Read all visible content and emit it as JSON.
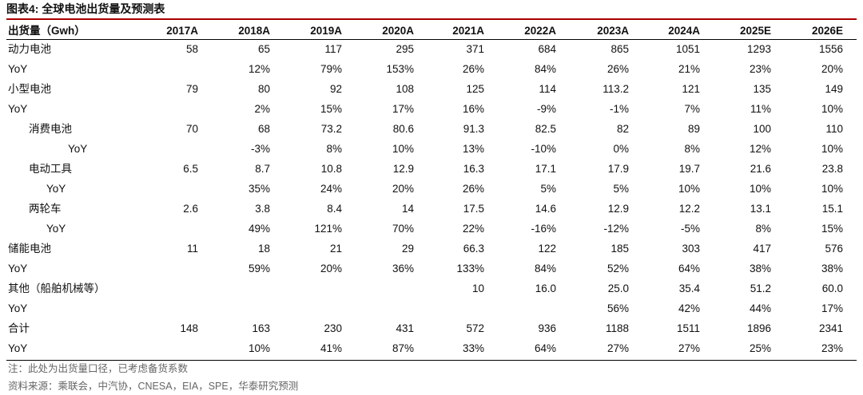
{
  "title": "图表4:  全球电池出货量及预测表",
  "table": {
    "header": [
      "出货量（Gwh）",
      "2017A",
      "2018A",
      "2019A",
      "2020A",
      "2021A",
      "2022A",
      "2023A",
      "2024A",
      "2025E",
      "2026E"
    ],
    "rows": [
      [
        "动力电池",
        "58",
        "65",
        "117",
        "295",
        "371",
        "684",
        "865",
        "1051",
        "1293",
        "1556"
      ],
      [
        "YoY",
        null,
        "12%",
        "79%",
        "153%",
        "26%",
        "84%",
        "26%",
        "21%",
        "23%",
        "20%"
      ],
      [
        "小型电池",
        "79",
        "80",
        "92",
        "108",
        "125",
        "114",
        "113.2",
        "121",
        "135",
        "149"
      ],
      [
        "YoY",
        null,
        "2%",
        "15%",
        "17%",
        "16%",
        "-9%",
        "-1%",
        "7%",
        "11%",
        "10%"
      ],
      [
        "消费电池",
        "70",
        "68",
        "73.2",
        "80.6",
        "91.3",
        "82.5",
        "82",
        "89",
        "100",
        "110"
      ],
      [
        "YoY",
        null,
        "-3%",
        "8%",
        "10%",
        "13%",
        "-10%",
        "0%",
        "8%",
        "12%",
        "10%"
      ],
      [
        "电动工具",
        "6.5",
        "8.7",
        "10.8",
        "12.9",
        "16.3",
        "17.1",
        "17.9",
        "19.7",
        "21.6",
        "23.8"
      ],
      [
        "YoY",
        null,
        "35%",
        "24%",
        "20%",
        "26%",
        "5%",
        "5%",
        "10%",
        "10%",
        "10%"
      ],
      [
        "两轮车",
        "2.6",
        "3.8",
        "8.4",
        "14",
        "17.5",
        "14.6",
        "12.9",
        "12.2",
        "13.1",
        "15.1"
      ],
      [
        "YoY",
        null,
        "49%",
        "121%",
        "70%",
        "22%",
        "-16%",
        "-12%",
        "-5%",
        "8%",
        "15%"
      ],
      [
        "储能电池",
        "11",
        "18",
        "21",
        "29",
        "66.3",
        "122",
        "185",
        "303",
        "417",
        "576"
      ],
      [
        "YoY",
        null,
        "59%",
        "20%",
        "36%",
        "133%",
        "84%",
        "52%",
        "64%",
        "38%",
        "38%"
      ],
      [
        "其他（船舶机械等）",
        null,
        null,
        null,
        null,
        "10",
        "16.0",
        "25.0",
        "35.4",
        "51.2",
        "60.0"
      ],
      [
        "YoY",
        null,
        null,
        null,
        null,
        null,
        null,
        "56%",
        "42%",
        "44%",
        "17%"
      ],
      [
        "合计",
        "148",
        "163",
        "230",
        "431",
        "572",
        "936",
        "1188",
        "1511",
        "1896",
        "2341"
      ],
      [
        "YoY",
        null,
        "10%",
        "41%",
        "87%",
        "33%",
        "64%",
        "27%",
        "27%",
        "25%",
        "23%"
      ]
    ]
  },
  "notes": [
    "注：此处为出货量口径，已考虑备货系数",
    "资料来源：乘联会，中汽协，CNESA，EIA，SPE，华泰研究预测"
  ]
}
